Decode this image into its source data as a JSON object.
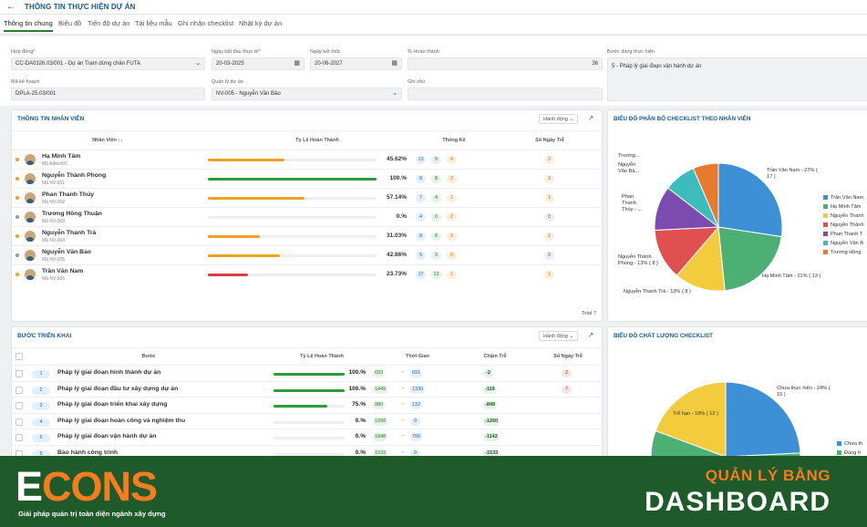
{
  "header": {
    "title": "THÔNG TIN THỰC HIỆN DỰ ÁN",
    "back_icon": "arrow-left-icon"
  },
  "tabs": [
    {
      "label": "Thông tin chung",
      "active": true
    },
    {
      "label": "Biểu đồ"
    },
    {
      "label": "Tiến độ dự án"
    },
    {
      "label": "Tài liệu mẫu"
    },
    {
      "label": "Ghi nhận checklist"
    },
    {
      "label": "Nhật ký dự án"
    }
  ],
  "form": {
    "contract_label": "Hợp đồng",
    "contract_value": "CC-DA0326.03/001 - Dự án Trạm dừng chân FUTA",
    "start_label": "Ngày bắt đầu thực tế",
    "start_value": "20-03-2025",
    "end_label": "Ngày kết thúc",
    "end_value": "20-06-2027",
    "percent_label": "% Hoàn thành",
    "percent_value": "36",
    "stage_label": "Bước đang thực hiện",
    "stage_value": "5 - Pháp lý giai đoạn vận hành dự án",
    "plan_label": "Mã kế hoạch",
    "plan_value": "DPLA-25.03/001",
    "manager_label": "Quản lý dự án",
    "manager_value": "NV-005 - Nguyễn Văn Bảo",
    "note_label": "Ghi chú",
    "note_value": ""
  },
  "staff": {
    "title": "THÔNG TIN NHÂN VIÊN",
    "action_label": "Hành động",
    "columns": [
      "Nhân Viên",
      "Tỷ Lệ Hoàn Thành",
      "Thống Kê",
      "Số Ngày Trễ"
    ],
    "rows": [
      {
        "name": "Hạ Minh Tâm",
        "code": "Mã Admin01",
        "pct": "45.62%",
        "ratio": 0.4562,
        "color": "#f0a020",
        "dot": "#f0a020",
        "s1": "13",
        "s2": "9",
        "s3": "4",
        "late": "2",
        "late_color": "orange"
      },
      {
        "name": "Nguyễn Thành Phong",
        "code": "Mã NV-001",
        "pct": "100.%",
        "ratio": 1.0,
        "color": "#2e9a3c",
        "dot": "#f0a020",
        "s1": "8",
        "s2": "8",
        "s3": "2",
        "late": "3",
        "late_color": "orange"
      },
      {
        "name": "Phan Thanh Thúy",
        "code": "Mã NV-002",
        "pct": "57.14%",
        "ratio": 0.5714,
        "color": "#f0a020",
        "dot": "#f0a020",
        "s1": "7",
        "s2": "4",
        "s3": "1",
        "late": "1",
        "late_color": "orange"
      },
      {
        "name": "Trương Hồng Thuận",
        "code": "Mã NV-003",
        "pct": "0.%",
        "ratio": 0.0,
        "color": "#cccccc",
        "dot": "#999999",
        "s1": "4",
        "s2": "0",
        "s3": "2",
        "late": "0",
        "late_color": "gray"
      },
      {
        "name": "Nguyễn Thanh Trà",
        "code": "Mã NV-004",
        "pct": "31.03%",
        "ratio": 0.3103,
        "color": "#f0a020",
        "dot": "#f0a020",
        "s1": "8",
        "s2": "6",
        "s3": "2",
        "late": "2",
        "late_color": "orange"
      },
      {
        "name": "Nguyễn Văn Bảo",
        "code": "Mã NV-005",
        "pct": "42.86%",
        "ratio": 0.4286,
        "color": "#f0a020",
        "dot": "#999999",
        "s1": "5",
        "s2": "3",
        "s3": "0",
        "late": "0",
        "late_color": "gray"
      },
      {
        "name": "Trần Văn Nam",
        "code": "Mã NV-006",
        "pct": "23.73%",
        "ratio": 0.2373,
        "color": "#d84040",
        "dot": "#f0a020",
        "s1": "17",
        "s2": "13",
        "s3": "1",
        "late": "1",
        "late_color": "orange"
      }
    ],
    "total": "Total 7"
  },
  "steps": {
    "title": "BƯỚC TRIỂN KHAI",
    "action_label": "Hành động",
    "columns": [
      "Bước",
      "Tỷ Lệ Hoàn Thành",
      "Thời Gian",
      "Chậm Trễ",
      "Số Ngày Trễ"
    ],
    "rows": [
      {
        "num": "1",
        "name": "Pháp lý giai đoạn hình thành dự án",
        "pct": "100.%",
        "ratio": 1.0,
        "t1": "693",
        "t2": "691",
        "delay": "-2",
        "late": "2"
      },
      {
        "num": "2",
        "name": "Pháp lý giai đoạn đầu tư xây dựng dự án",
        "pct": "100.%",
        "ratio": 1.0,
        "t1": "1449",
        "t2": "1330",
        "delay": "-119",
        "late": "7"
      },
      {
        "num": "3",
        "name": "Pháp lý giai đoạn triển khai xây dựng",
        "pct": "75.%",
        "ratio": 0.75,
        "t1": "980",
        "t2": "132",
        "delay": "-848",
        "late": ""
      },
      {
        "num": "4",
        "name": "Pháp lý giai đoạn hoàn công và nghiệm thu",
        "pct": "0.%",
        "ratio": 0.0,
        "t1": "1260",
        "t2": "0",
        "delay": "-1260",
        "late": ""
      },
      {
        "num": "5",
        "name": "Pháp lý giai đoạn vận hành dự án",
        "pct": "0.%",
        "ratio": 0.0,
        "t1": "1848",
        "t2": "706",
        "delay": "-1142",
        "late": ""
      },
      {
        "num": "6",
        "name": "Bảo hành công trình",
        "pct": "0.%",
        "ratio": 0.0,
        "t1": "1533",
        "t2": "0",
        "delay": "-1533",
        "late": ""
      }
    ]
  },
  "chart_data": [
    {
      "type": "pie",
      "title": "BIỂU ĐỒ PHÂN BỔ CHECKLIST THEO NHÂN VIÊN",
      "slices": [
        {
          "name": "Trần Văn Nam",
          "value": 17,
          "pct": 27,
          "color": "#3d8fd6",
          "label": "Trần Văn Nam - 27% ( 17 )"
        },
        {
          "name": "Hạ Minh Tâm",
          "value": 13,
          "pct": 21,
          "color": "#4caf74",
          "label": "Hạ Minh Tâm - 21% ( 13 )"
        },
        {
          "name": "Nguyễn Thanh Trà",
          "value": 8,
          "pct": 13,
          "color": "#f2cc3c",
          "label": "Nguyễn Thanh Trà - 13% ( 8 )"
        },
        {
          "name": "Nguyễn Thành Phong",
          "value": 8,
          "pct": 13,
          "color": "#e05050",
          "label": "Nguyễn Thành Phong - 13% ( 8 )"
        },
        {
          "name": "Phan Thanh Thúy",
          "value": 7,
          "pct": 11,
          "color": "#7b4bb0",
          "label": "Phan Thanh Thúy - ..."
        },
        {
          "name": "Nguyễn Văn Bảo",
          "value": 5,
          "pct": 8,
          "color": "#3cbcbc",
          "label": "Nguyễn Văn Bả..."
        },
        {
          "name": "Trương Hồng Thuận",
          "value": 4,
          "pct": 7,
          "color": "#e87a30",
          "label": "Trương..."
        }
      ],
      "legend": [
        "Trần Văn Nam",
        "Hạ Minh Tâm",
        "Nguyễn Thanh",
        "Nguyễn Thành",
        "Phan Thanh T",
        "Nguyễn Văn B",
        "Trương Hồng"
      ],
      "legend_placement": "right"
    },
    {
      "type": "pie",
      "title": "BIỂU ĐỒ CHẤT LƯỢNG CHECKLIST",
      "slices": [
        {
          "name": "Chưa thực hiện",
          "value": 15,
          "pct": 24,
          "color": "#3d8fd6",
          "label": "Chưa thực hiện - 24% ( 15 )"
        },
        {
          "name": "Đúng hạn",
          "value": 35,
          "pct": 57,
          "color": "#4caf74",
          "label": ""
        },
        {
          "name": "Trễ hạn",
          "value": 12,
          "pct": 19,
          "color": "#f2cc3c",
          "label": "Trễ hạn - 19% ( 12 )"
        }
      ],
      "legend": [
        "Chưa th",
        "Đúng h"
      ],
      "legend_placement": "right"
    }
  ],
  "banner": {
    "logo_e": "E",
    "logo_rest": "CONS",
    "tagline": "Giải pháp quản trị toàn diện ngành xây dựng",
    "line1": "QUẢN LÝ BẰNG",
    "line2": "DASHBOARD"
  }
}
